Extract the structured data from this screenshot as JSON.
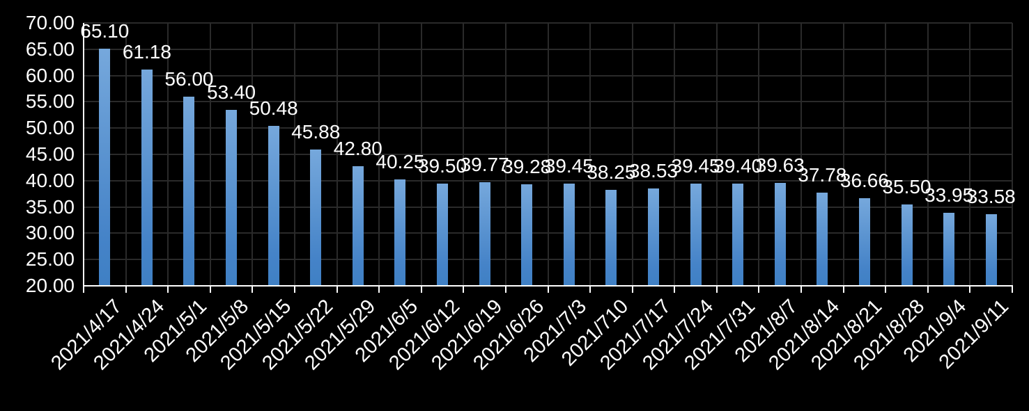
{
  "chart_data": {
    "type": "bar",
    "title": "",
    "xlabel": "",
    "ylabel": "",
    "categories": [
      "2021/4/17",
      "2021/4/24",
      "2021/5/1",
      "2021/5/8",
      "2021/5/15",
      "2021/5/22",
      "2021/5/29",
      "2021/6/5",
      "2021/6/12",
      "2021/6/19",
      "2021/6/26",
      "2021/7/3",
      "2021/710",
      "2021/7/17",
      "2021/7/24",
      "2021/7/31",
      "2021/8/7",
      "2021/8/14",
      "2021/8/21",
      "2021/8/28",
      "2021/9/4",
      "2021/9/11"
    ],
    "values": [
      65.1,
      61.18,
      56.0,
      53.4,
      50.48,
      45.88,
      42.8,
      40.25,
      39.5,
      39.77,
      39.28,
      39.45,
      38.25,
      38.53,
      39.45,
      39.4,
      39.63,
      37.78,
      36.66,
      35.5,
      33.95,
      33.58
    ],
    "value_labels": [
      "65.10",
      "61.18",
      "56.00",
      "53.40",
      "50.48",
      "45.88",
      "42.80",
      "40.25",
      "39.50",
      "39.77",
      "39.28",
      "39.45",
      "38.25",
      "38.53",
      "39.45",
      "39.40",
      "39.63",
      "37.78",
      "36.66",
      "35.50",
      "33.95",
      "33.58"
    ],
    "y_tick_labels": [
      "70.00",
      "65.00",
      "60.00",
      "55.00",
      "50.00",
      "45.00",
      "40.00",
      "35.00",
      "30.00",
      "25.00",
      "20.00"
    ],
    "ylim": [
      20,
      70
    ],
    "y_major_unit": 5,
    "grid": true,
    "legend": "none",
    "colors": {
      "background": "#000000",
      "bar_top": "#76a8dc",
      "bar_bottom": "#3f80c4",
      "gridline": "#2a2a2a",
      "axis": "#ffffff",
      "text": "#ffffff"
    }
  }
}
